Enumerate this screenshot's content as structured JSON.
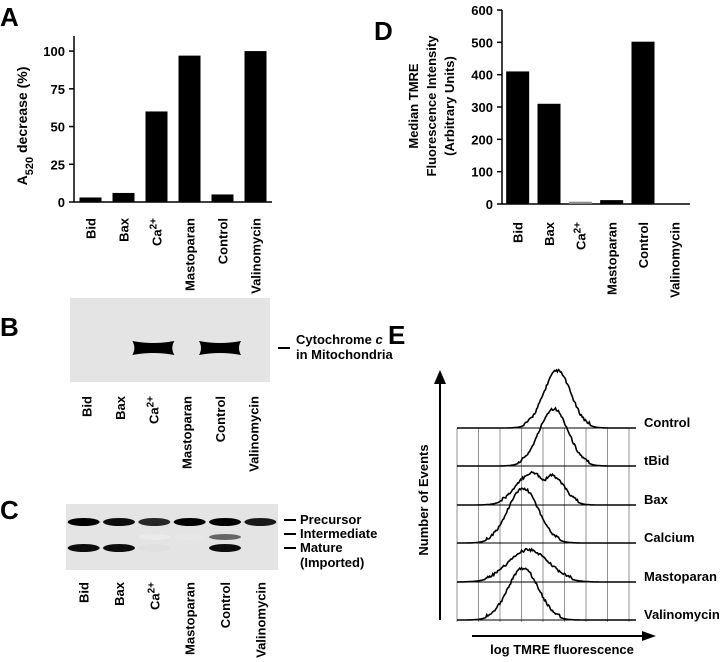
{
  "panels": {
    "A": "A",
    "B": "B",
    "C": "C",
    "D": "D",
    "E": "E"
  },
  "chart_data": [
    {
      "panel": "A",
      "type": "bar",
      "categories": [
        "Bid",
        "Bax",
        "Ca2+",
        "Mastoparan",
        "Control",
        "Valinomycin"
      ],
      "values": [
        3,
        6,
        60,
        97,
        5,
        100
      ],
      "title": "",
      "xlabel": "",
      "ylabel_main": "A",
      "ylabel_sub": "520",
      "ylabel_rest": " decrease (%)",
      "yticks": [
        "0",
        "25",
        "50",
        "75",
        "100"
      ],
      "ylim": [
        0,
        110
      ],
      "bar_color": "#000000",
      "grid": false
    },
    {
      "panel": "D",
      "type": "bar",
      "categories": [
        "Bid",
        "Bax",
        "Ca2+",
        "Mastoparan",
        "Control",
        "Valinomycin"
      ],
      "values": [
        410,
        310,
        7,
        12,
        502,
        0
      ],
      "title": "",
      "xlabel": "",
      "ylabel_lines": [
        "Median TMRE",
        "Fluorescence Intensity",
        "(Arbitrary Units)"
      ],
      "yticks": [
        "0",
        "100",
        "200",
        "300",
        "400",
        "500",
        "600"
      ],
      "ylim": [
        0,
        600
      ],
      "bar_colors": [
        "#000000",
        "#000000",
        "#888888",
        "#000000",
        "#000000",
        "#000000"
      ],
      "grid": false
    },
    {
      "panel": "B",
      "type": "blot",
      "lanes": [
        "Bid",
        "Bax",
        "Ca2+",
        "Mastoparan",
        "Control",
        "Valinomycin"
      ],
      "band_intensity": [
        0,
        0,
        1,
        0,
        1,
        0
      ],
      "band_label_lines": [
        "Cytochrome c",
        "in Mitochondria"
      ],
      "background": "#e4e4e4"
    },
    {
      "panel": "C",
      "type": "blot",
      "lanes": [
        "Bid",
        "Bax",
        "Ca2+",
        "Mastoparan",
        "Control",
        "Valinomycin"
      ],
      "rows": [
        {
          "label": "Precursor",
          "intensity": [
            1,
            0.95,
            0.85,
            1,
            1,
            0.9
          ]
        },
        {
          "label": "Intermediate",
          "intensity": [
            0,
            0,
            0.08,
            0.1,
            0.6,
            0
          ]
        },
        {
          "label": "Mature",
          "intensity": [
            0.95,
            0.95,
            0.12,
            0,
            0.95,
            0
          ]
        }
      ],
      "mature_note": "(Imported)",
      "background": "#e4e4e4"
    },
    {
      "panel": "E",
      "type": "line",
      "xlabel": "log TMRE fluorescence",
      "ylabel": "Number of Events",
      "series": [
        {
          "name": "Control",
          "peak": 0.56,
          "width": 0.075,
          "height": 1.0
        },
        {
          "name": "tBid",
          "peak": 0.54,
          "width": 0.08,
          "height": 1.0
        },
        {
          "name": "Bax",
          "peak": 0.42,
          "width": 0.085,
          "height": 0.55,
          "second_peak": 0.53,
          "second_height": 0.5
        },
        {
          "name": "Calcium",
          "peak": 0.37,
          "width": 0.085,
          "height": 0.95
        },
        {
          "name": "Mastoparan",
          "peak": 0.4,
          "width": 0.11,
          "height": 0.55
        },
        {
          "name": "Valinomycin",
          "peak": 0.37,
          "width": 0.085,
          "height": 0.9
        }
      ],
      "grid": true
    }
  ]
}
